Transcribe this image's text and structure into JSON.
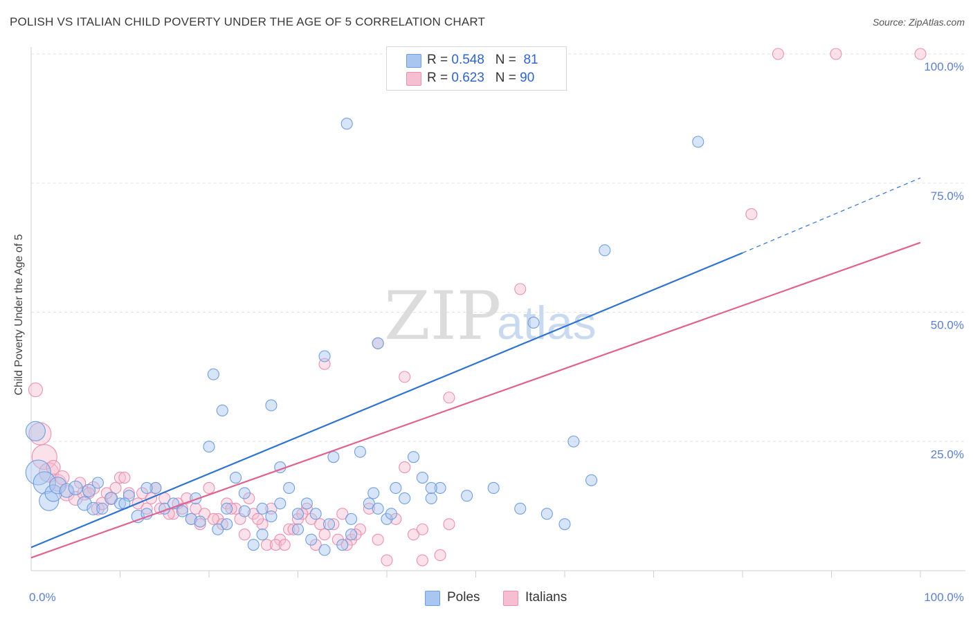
{
  "title": "POLISH VS ITALIAN CHILD POVERTY UNDER THE AGE OF 5 CORRELATION CHART",
  "source": "Source: ZipAtlas.com",
  "watermark": {
    "zip": "ZIP",
    "atlas": "atlas"
  },
  "legend": {
    "r_label": "R =",
    "n_label": "N =",
    "poles": {
      "r": "0.548",
      "n": "81"
    },
    "italians": {
      "r": "0.623",
      "n": "90"
    }
  },
  "bottom_legend": {
    "poles": "Poles",
    "italians": "Italians"
  },
  "colors": {
    "poles_fill": "#a9c6f0",
    "poles_stroke": "#6f9ee0",
    "poles_line": "#2f73d0",
    "italians_fill": "#f6bfd1",
    "italians_stroke": "#ec8fb0",
    "italians_line": "#e0628e"
  },
  "chart_data": {
    "type": "scatter",
    "title": "POLISH VS ITALIAN CHILD POVERTY UNDER THE AGE OF 5 CORRELATION CHART",
    "xlabel": "",
    "ylabel": "Child Poverty Under the Age of 5",
    "xlim": [
      0,
      100
    ],
    "ylim": [
      0,
      100
    ],
    "x_tick_labels": [
      "0.0%",
      "100.0%"
    ],
    "y_ticks": [
      25,
      50,
      75,
      100
    ],
    "y_tick_labels": [
      "25.0%",
      "50.0%",
      "75.0%",
      "100.0%"
    ],
    "grid": true,
    "series": [
      {
        "name": "Poles",
        "r": 0.548,
        "n": 81,
        "trend": {
          "x0": 0,
          "y0": 4.5,
          "x1": 80,
          "y1": 61.5,
          "dash_x1": 100,
          "dash_y1": 76
        },
        "points": [
          [
            0.5,
            27,
            14
          ],
          [
            0.8,
            19,
            18
          ],
          [
            1.5,
            17,
            16
          ],
          [
            2,
            13.5,
            14
          ],
          [
            2.5,
            15,
            12
          ],
          [
            3,
            16.5,
            12
          ],
          [
            4,
            15.5,
            10
          ],
          [
            5,
            16,
            10
          ],
          [
            6,
            13,
            10
          ],
          [
            6.5,
            15.5,
            9
          ],
          [
            7,
            12,
            9
          ],
          [
            8,
            12,
            8
          ],
          [
            9,
            14,
            9
          ],
          [
            10,
            13,
            8
          ],
          [
            11,
            14.5,
            8
          ],
          [
            12,
            10.5,
            9
          ],
          [
            13,
            11,
            8
          ],
          [
            14,
            16,
            8
          ],
          [
            15,
            12,
            8
          ],
          [
            16,
            13,
            8
          ],
          [
            17,
            11.5,
            8
          ],
          [
            18,
            10,
            8
          ],
          [
            19,
            9.5,
            8
          ],
          [
            20,
            24,
            8
          ],
          [
            21,
            8,
            8
          ],
          [
            22,
            9,
            8
          ],
          [
            23,
            18,
            8
          ],
          [
            24,
            11.5,
            8
          ],
          [
            25,
            5,
            8
          ],
          [
            26,
            7,
            8
          ],
          [
            27,
            10.5,
            8
          ],
          [
            28,
            20,
            8
          ],
          [
            29,
            16,
            8
          ],
          [
            30,
            11,
            8
          ],
          [
            31,
            13,
            8
          ],
          [
            32,
            11,
            8
          ],
          [
            33,
            4,
            8
          ],
          [
            34,
            22,
            8
          ],
          [
            35,
            5,
            8
          ],
          [
            36,
            7,
            8
          ],
          [
            37,
            23,
            8
          ],
          [
            38,
            13,
            8
          ],
          [
            39,
            12,
            8
          ],
          [
            40,
            10,
            8
          ],
          [
            41,
            16,
            8
          ],
          [
            42,
            14,
            8
          ],
          [
            43,
            22,
            8
          ],
          [
            44,
            18,
            8
          ],
          [
            45,
            14,
            8
          ],
          [
            46,
            16,
            8
          ],
          [
            20.5,
            38,
            8
          ],
          [
            21.5,
            31,
            8
          ],
          [
            27,
            32,
            8
          ],
          [
            33,
            41.5,
            8
          ],
          [
            39,
            44,
            8
          ],
          [
            45,
            16,
            8
          ],
          [
            56.5,
            48,
            8
          ],
          [
            61,
            25,
            8
          ],
          [
            63,
            17.5,
            8
          ],
          [
            64.5,
            62,
            8
          ],
          [
            75,
            83,
            8
          ],
          [
            35.5,
            86.5,
            8
          ],
          [
            49,
            14.5,
            8
          ],
          [
            52,
            16,
            8
          ],
          [
            55,
            12,
            8
          ],
          [
            58,
            11,
            8
          ],
          [
            60,
            9,
            8
          ],
          [
            13,
            16,
            8
          ],
          [
            10.5,
            13,
            8
          ],
          [
            7.5,
            17,
            8
          ],
          [
            18.5,
            14,
            8
          ],
          [
            22,
            12,
            8
          ],
          [
            24,
            15,
            8
          ],
          [
            26,
            12,
            8
          ],
          [
            28,
            13,
            8
          ],
          [
            30,
            8,
            8
          ],
          [
            31.5,
            6,
            8
          ],
          [
            33.5,
            9,
            8
          ],
          [
            36,
            10,
            8
          ],
          [
            38.5,
            15,
            8
          ],
          [
            40.5,
            11,
            8
          ]
        ]
      },
      {
        "name": "Italians",
        "r": 0.623,
        "n": 90,
        "trend": {
          "x0": 0,
          "y0": 2.5,
          "x1": 100,
          "y1": 63.5
        },
        "points": [
          [
            0.5,
            35,
            10
          ],
          [
            1,
            26.5,
            16
          ],
          [
            1.5,
            22,
            18
          ],
          [
            2,
            19,
            14
          ],
          [
            3,
            17,
            12
          ],
          [
            4,
            15,
            11
          ],
          [
            5,
            14,
            10
          ],
          [
            6,
            15,
            10
          ],
          [
            7,
            16,
            9
          ],
          [
            7.5,
            12,
            9
          ],
          [
            8,
            13,
            9
          ],
          [
            9,
            14,
            8
          ],
          [
            9.5,
            16,
            8
          ],
          [
            10,
            18,
            8
          ],
          [
            11,
            15,
            8
          ],
          [
            12,
            13,
            8
          ],
          [
            13,
            12,
            8
          ],
          [
            14,
            16,
            8
          ],
          [
            15,
            14,
            8
          ],
          [
            16,
            11,
            8
          ],
          [
            17,
            12,
            8
          ],
          [
            18,
            10,
            8
          ],
          [
            19,
            9,
            8
          ],
          [
            20,
            16,
            8
          ],
          [
            21,
            10,
            8
          ],
          [
            22,
            13,
            8
          ],
          [
            23,
            12,
            8
          ],
          [
            24,
            7,
            8
          ],
          [
            25,
            11,
            8
          ],
          [
            26,
            9,
            8
          ],
          [
            27,
            12,
            8
          ],
          [
            28,
            6,
            8
          ],
          [
            29,
            8,
            8
          ],
          [
            30,
            10,
            8
          ],
          [
            31,
            12,
            8
          ],
          [
            32,
            5,
            8
          ],
          [
            33,
            7,
            8
          ],
          [
            34,
            9,
            8
          ],
          [
            35,
            11,
            8
          ],
          [
            36,
            6,
            8
          ],
          [
            37,
            8,
            8
          ],
          [
            38,
            12,
            8
          ],
          [
            39,
            6,
            8
          ],
          [
            40,
            2,
            8
          ],
          [
            41,
            10,
            8
          ],
          [
            42,
            20,
            8
          ],
          [
            43,
            7,
            8
          ],
          [
            44,
            8,
            8
          ],
          [
            46,
            3,
            8
          ],
          [
            47,
            9,
            8
          ],
          [
            33,
            40,
            8
          ],
          [
            39,
            44,
            8
          ],
          [
            42,
            37.5,
            8
          ],
          [
            47,
            33.5,
            8
          ],
          [
            55,
            54.5,
            8
          ],
          [
            81,
            69,
            8
          ],
          [
            84,
            100,
            8
          ],
          [
            90.5,
            100,
            8
          ],
          [
            100,
            100,
            8
          ],
          [
            44,
            2,
            8
          ],
          [
            2.5,
            20,
            10
          ],
          [
            3.5,
            18,
            10
          ],
          [
            5.5,
            17,
            8
          ],
          [
            6.5,
            15,
            8
          ],
          [
            8.5,
            15,
            8
          ],
          [
            10.5,
            18,
            8
          ],
          [
            12.5,
            15,
            8
          ],
          [
            13.5,
            14,
            8
          ],
          [
            14.5,
            12,
            8
          ],
          [
            15.5,
            11,
            8
          ],
          [
            16.5,
            13,
            8
          ],
          [
            17.5,
            14,
            8
          ],
          [
            18.5,
            12,
            8
          ],
          [
            19.5,
            11,
            8
          ],
          [
            20.5,
            10,
            8
          ],
          [
            21.5,
            9,
            8
          ],
          [
            22.5,
            12,
            8
          ],
          [
            23.5,
            10,
            8
          ],
          [
            24.5,
            14,
            8
          ],
          [
            25.5,
            10,
            8
          ],
          [
            26.5,
            5,
            8
          ],
          [
            27.5,
            5,
            8
          ],
          [
            28.5,
            5,
            8
          ],
          [
            29.5,
            8,
            8
          ],
          [
            30.5,
            11,
            8
          ],
          [
            31.5,
            10,
            8
          ],
          [
            32.5,
            9,
            8
          ],
          [
            34.5,
            6,
            8
          ],
          [
            35.5,
            5,
            8
          ],
          [
            36.5,
            7,
            8
          ]
        ]
      }
    ]
  }
}
